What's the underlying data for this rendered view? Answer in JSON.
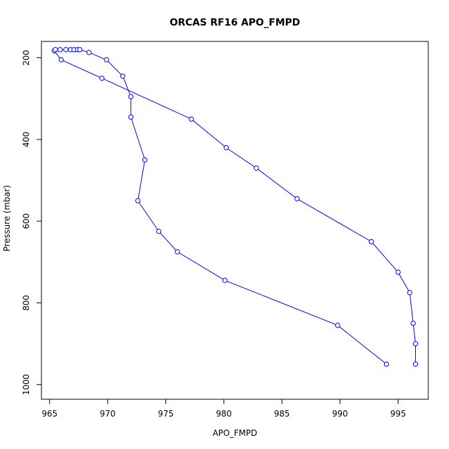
{
  "chart_data": {
    "type": "line",
    "title": "ORCAS RF16 APO_FMPD",
    "xlabel": "APO_FMPD",
    "ylabel": "Pressure (mbar)",
    "xlim": [
      964.3,
      997.6
    ],
    "ylim": [
      1036,
      160
    ],
    "y_axis_inverted": true,
    "x_ticks": [
      965,
      970,
      975,
      980,
      985,
      990,
      995
    ],
    "y_ticks": [
      200,
      400,
      600,
      800,
      1000
    ],
    "grid": false,
    "legend": "none",
    "line_color": "#0000ff",
    "marker": "open-circle",
    "series": [
      {
        "x": [
          996.5,
          996.5,
          996.3,
          996.0,
          995.0,
          992.7,
          986.3,
          982.8,
          980.2,
          977.2,
          969.5,
          966.0,
          965.4,
          965.5,
          965.9,
          966.4,
          966.8,
          967.1,
          967.4,
          967.6,
          968.4,
          969.9,
          971.3,
          972.0,
          972.0,
          973.2,
          972.6,
          974.4,
          976.0,
          980.1,
          989.8,
          994.0
        ],
        "y": [
          950,
          900,
          850,
          775,
          725,
          650,
          545,
          470,
          420,
          350,
          250,
          205,
          183,
          180,
          180,
          180,
          180,
          180,
          180,
          180,
          187,
          205,
          245,
          295,
          345,
          450,
          550,
          625,
          675,
          745,
          855,
          950
        ]
      }
    ]
  }
}
